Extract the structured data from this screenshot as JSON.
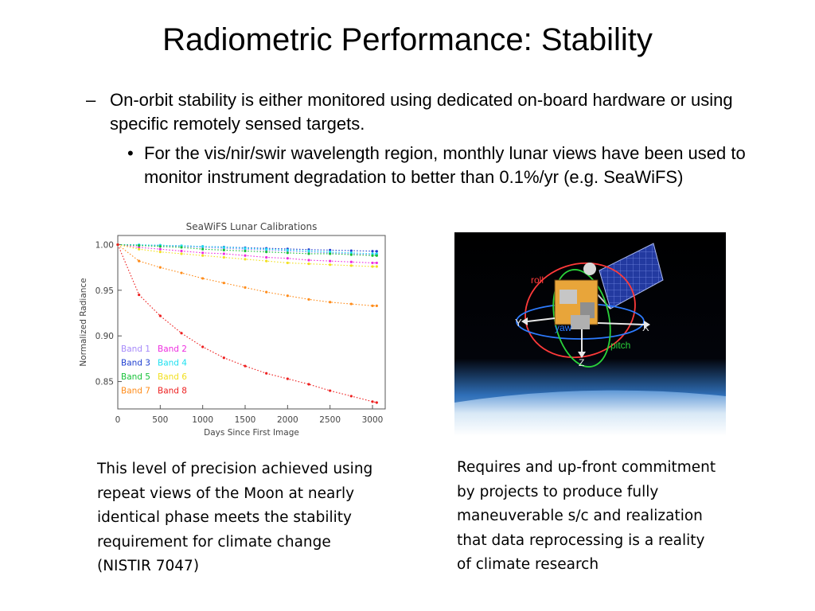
{
  "slide": {
    "title": "Radiometric Performance: Stability",
    "bullet1_marker": "–",
    "bullet1": "On-orbit stability is either monitored using dedicated on-board hardware or using specific remotely sensed targets.",
    "bullet2_marker": "•",
    "bullet2": "For the vis/nir/swir wavelength region, monthly lunar views have been used to monitor instrument degradation to better than 0.1%/yr (e.g. SeaWiFS)",
    "caption_left_lines": [
      "This level of precision achieved using",
      "repeat views of the Moon at nearly",
      "identical phase meets the stability",
      "requirement for climate change",
      "(NISTIR 7047)"
    ],
    "caption_right_lines": [
      "Requires and up-front commitment",
      "by projects to produce fully",
      "maneuverable s/c and realization",
      "that data reprocessing is a reality",
      "of climate research"
    ]
  },
  "figure": {
    "labels": {
      "roll": "roll",
      "yaw": "yaw",
      "pitch": "pitch",
      "x": "X",
      "y": "Y",
      "z": "Z"
    },
    "colors": {
      "roll": "#ff3a3a",
      "yaw": "#2d7bff",
      "pitch": "#2ad33a",
      "axis": "#e8e8e8"
    }
  },
  "chart_data": {
    "type": "scatter",
    "title": "SeaWiFS Lunar Calibrations",
    "xlabel": "Days Since First Image",
    "ylabel": "Normalized Radiance",
    "xlim": [
      0,
      3150
    ],
    "ylim": [
      0.82,
      1.01
    ],
    "xticks": [
      "0",
      "500",
      "1000",
      "1500",
      "2000",
      "2500",
      "3000"
    ],
    "yticks": [
      "1.00",
      "0.95",
      "0.90",
      "0.85"
    ],
    "x": [
      0,
      250,
      500,
      750,
      1000,
      1250,
      1500,
      1750,
      2000,
      2250,
      2500,
      2750,
      3000,
      3050
    ],
    "series": [
      {
        "name": "Band 1",
        "color": "#a78bfa",
        "values": [
          1.0,
          0.9995,
          0.999,
          0.998,
          0.997,
          0.996,
          0.995,
          0.994,
          0.993,
          0.992,
          0.991,
          0.99,
          0.989,
          0.989
        ]
      },
      {
        "name": "Band 2",
        "color": "#ee2ee0",
        "values": [
          1.0,
          0.997,
          0.995,
          0.993,
          0.991,
          0.99,
          0.988,
          0.986,
          0.985,
          0.983,
          0.982,
          0.981,
          0.98,
          0.98
        ]
      },
      {
        "name": "Band 3",
        "color": "#2040d0",
        "values": [
          1.0,
          0.9996,
          0.9992,
          0.9987,
          0.998,
          0.9974,
          0.9966,
          0.996,
          0.9953,
          0.9946,
          0.994,
          0.9934,
          0.9928,
          0.9927
        ]
      },
      {
        "name": "Band 4",
        "color": "#1ee0f0",
        "values": [
          1.0,
          0.9998,
          0.9993,
          0.9987,
          0.998,
          0.997,
          0.996,
          0.995,
          0.994,
          0.993,
          0.992,
          0.991,
          0.99,
          0.99
        ]
      },
      {
        "name": "Band 5",
        "color": "#18c23a",
        "values": [
          1.0,
          0.999,
          0.998,
          0.997,
          0.995,
          0.994,
          0.993,
          0.992,
          0.991,
          0.99,
          0.99,
          0.989,
          0.988,
          0.988
        ]
      },
      {
        "name": "Band 6",
        "color": "#f2e020",
        "values": [
          1.0,
          0.995,
          0.992,
          0.99,
          0.988,
          0.986,
          0.984,
          0.982,
          0.98,
          0.979,
          0.978,
          0.977,
          0.976,
          0.976
        ]
      },
      {
        "name": "Band 7",
        "color": "#ff8c1a",
        "values": [
          1.0,
          0.982,
          0.975,
          0.969,
          0.963,
          0.958,
          0.953,
          0.948,
          0.944,
          0.94,
          0.937,
          0.935,
          0.933,
          0.933
        ]
      },
      {
        "name": "Band 8",
        "color": "#ee2020",
        "values": [
          1.0,
          0.945,
          0.922,
          0.903,
          0.888,
          0.876,
          0.867,
          0.859,
          0.853,
          0.847,
          0.84,
          0.834,
          0.828,
          0.827
        ]
      }
    ],
    "legend_placement": "lower-left",
    "grid": false
  }
}
